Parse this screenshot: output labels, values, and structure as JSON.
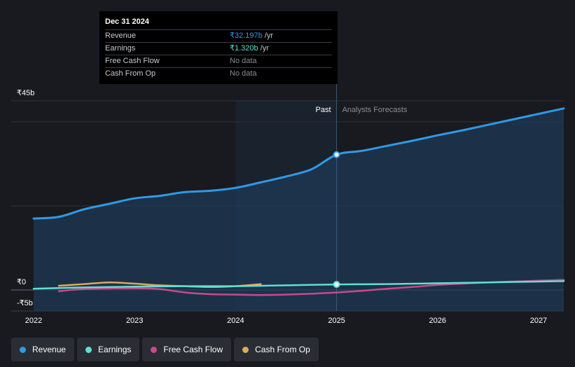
{
  "tooltip": {
    "date": "Dec 31 2024",
    "rows": [
      {
        "label": "Revenue",
        "value": "₹32.197b",
        "unit": "/yr",
        "color": "#2f9ae6"
      },
      {
        "label": "Earnings",
        "value": "₹1.320b",
        "unit": "/yr",
        "color": "#5fe0d0"
      },
      {
        "label": "Free Cash Flow",
        "value": "No data",
        "unit": "",
        "color": "#8a8d93"
      },
      {
        "label": "Cash From Op",
        "value": "No data",
        "unit": "",
        "color": "#8a8d93"
      }
    ]
  },
  "labels": {
    "past": "Past",
    "forecast": "Analysts Forecasts"
  },
  "legend": [
    {
      "name": "Revenue",
      "color": "#2f9ae6"
    },
    {
      "name": "Earnings",
      "color": "#5fe0d0"
    },
    {
      "name": "Free Cash Flow",
      "color": "#c94a8a"
    },
    {
      "name": "Cash From Op",
      "color": "#e0a85a"
    }
  ],
  "chart_data": {
    "type": "line",
    "title": "",
    "xlabel": "",
    "ylabel": "",
    "x_range": [
      2022.0,
      2027.25
    ],
    "ylim": [
      -5,
      45
    ],
    "ytick_labels": [
      {
        "value": 45,
        "label": "₹45b"
      },
      {
        "value": 0,
        "label": "₹0"
      },
      {
        "value": -5,
        "label": "-₹5b"
      }
    ],
    "xtick_labels": [
      {
        "value": 2022,
        "label": "2022"
      },
      {
        "value": 2023,
        "label": "2023"
      },
      {
        "value": 2024,
        "label": "2024"
      },
      {
        "value": 2025,
        "label": "2025"
      },
      {
        "value": 2026,
        "label": "2026"
      },
      {
        "value": 2027,
        "label": "2027"
      }
    ],
    "divider_x": 2025.0,
    "highlight_start_x": 2024.0,
    "series": [
      {
        "name": "Revenue",
        "color": "#2f9ae6",
        "filled": true,
        "points": [
          [
            2022.0,
            17.0
          ],
          [
            2022.25,
            17.4
          ],
          [
            2022.5,
            19.2
          ],
          [
            2022.75,
            20.5
          ],
          [
            2023.0,
            21.8
          ],
          [
            2023.25,
            22.4
          ],
          [
            2023.5,
            23.3
          ],
          [
            2023.75,
            23.6
          ],
          [
            2024.0,
            24.3
          ],
          [
            2024.25,
            25.6
          ],
          [
            2024.5,
            27.0
          ],
          [
            2024.75,
            28.7
          ],
          [
            2025.0,
            32.2
          ],
          [
            2025.25,
            33.1
          ],
          [
            2025.5,
            34.3
          ],
          [
            2025.75,
            35.5
          ],
          [
            2026.0,
            36.8
          ],
          [
            2026.25,
            38.0
          ],
          [
            2026.5,
            39.3
          ],
          [
            2026.75,
            40.6
          ],
          [
            2027.0,
            41.9
          ],
          [
            2027.25,
            43.2
          ]
        ]
      },
      {
        "name": "Earnings",
        "color": "#5fe0d0",
        "filled": false,
        "points": [
          [
            2022.0,
            0.3
          ],
          [
            2022.5,
            0.6
          ],
          [
            2023.0,
            0.8
          ],
          [
            2023.5,
            0.9
          ],
          [
            2024.0,
            0.9
          ],
          [
            2024.5,
            1.1
          ],
          [
            2025.0,
            1.32
          ],
          [
            2025.5,
            1.4
          ],
          [
            2026.0,
            1.6
          ],
          [
            2026.5,
            1.8
          ],
          [
            2027.0,
            2.0
          ],
          [
            2027.25,
            2.1
          ]
        ]
      },
      {
        "name": "Free Cash Flow",
        "color": "#c94a8a",
        "filled": false,
        "points": [
          [
            2022.25,
            -0.3
          ],
          [
            2022.5,
            0.2
          ],
          [
            2023.0,
            0.4
          ],
          [
            2023.25,
            0.2
          ],
          [
            2023.5,
            -0.6
          ],
          [
            2023.75,
            -1.0
          ],
          [
            2024.0,
            -1.1
          ],
          [
            2024.25,
            -1.2
          ],
          [
            2024.5,
            -1.1
          ],
          [
            2024.75,
            -0.9
          ],
          [
            2025.0,
            -0.6
          ],
          [
            2025.25,
            -0.2
          ],
          [
            2025.5,
            0.3
          ],
          [
            2025.75,
            0.7
          ],
          [
            2026.0,
            1.2
          ],
          [
            2026.25,
            1.5
          ],
          [
            2026.5,
            1.8
          ],
          [
            2026.75,
            2.0
          ],
          [
            2027.0,
            2.2
          ],
          [
            2027.25,
            2.4
          ]
        ]
      },
      {
        "name": "Cash From Op",
        "color": "#e0a85a",
        "filled": false,
        "points": [
          [
            2022.25,
            1.0
          ],
          [
            2022.5,
            1.4
          ],
          [
            2022.75,
            1.8
          ],
          [
            2023.0,
            1.5
          ],
          [
            2023.25,
            1.1
          ],
          [
            2023.5,
            0.9
          ],
          [
            2023.75,
            0.7
          ],
          [
            2024.0,
            0.9
          ],
          [
            2024.25,
            1.4
          ]
        ]
      }
    ],
    "markers": [
      {
        "series": "Revenue",
        "x": 2025.0,
        "y": 32.2
      },
      {
        "series": "Earnings",
        "x": 2025.0,
        "y": 1.32
      }
    ]
  }
}
